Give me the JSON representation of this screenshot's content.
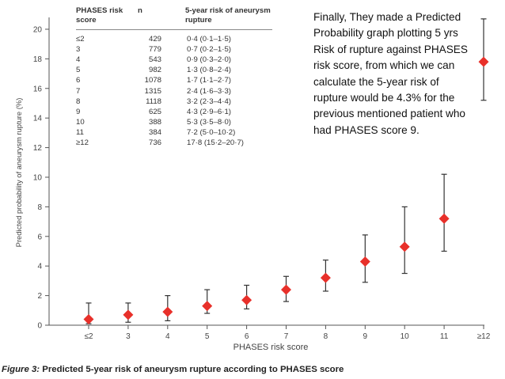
{
  "slide_note": "Finally, They made a Predicted Probability graph plotting 5 yrs Risk of rupture against PHASES risk score, from which we can calculate the 5-year risk of rupture would be 4.3% for the previous mentioned patient who had PHASES score 9.",
  "caption": {
    "figure_label": "Figure 3:",
    "text": "Predicted 5-year risk of aneurysm rupture according to PHASES score"
  },
  "table": {
    "headers": {
      "score": "PHASES risk score",
      "n": "n",
      "risk": "5-year risk of aneurysm rupture"
    },
    "rows": [
      {
        "score": "≤2",
        "n": "429",
        "risk": "0·4 (0·1–1·5)"
      },
      {
        "score": "3",
        "n": "779",
        "risk": "0·7 (0·2–1·5)"
      },
      {
        "score": "4",
        "n": "543",
        "risk": "0·9 (0·3–2·0)"
      },
      {
        "score": "5",
        "n": "982",
        "risk": "1·3 (0·8–2·4)"
      },
      {
        "score": "6",
        "n": "1078",
        "risk": "1·7 (1·1–2·7)"
      },
      {
        "score": "7",
        "n": "1315",
        "risk": "2·4 (1·6–3·3)"
      },
      {
        "score": "8",
        "n": "1118",
        "risk": "3·2 (2·3–4·4)"
      },
      {
        "score": "9",
        "n": "625",
        "risk": "4·3 (2·9–6·1)"
      },
      {
        "score": "10",
        "n": "388",
        "risk": "5·3 (3·5–8·0)"
      },
      {
        "score": "11",
        "n": "384",
        "risk": "7·2 (5·0–10·2)"
      },
      {
        "score": "≥12",
        "n": "736",
        "risk": "17·8 (15·2–20·7)"
      }
    ]
  },
  "chart_data": {
    "type": "scatter",
    "xlabel": "PHASES risk score",
    "ylabel": "Predicted probability of aneurysm rupture (%)",
    "categories": [
      "≤2",
      "3",
      "4",
      "5",
      "6",
      "7",
      "8",
      "9",
      "10",
      "11",
      "≥12"
    ],
    "yticks": [
      0,
      2,
      4,
      6,
      8,
      10,
      12,
      14,
      16,
      18,
      20
    ],
    "ylim": [
      0,
      20.8
    ],
    "series": [
      {
        "values": [
          0.4,
          0.7,
          0.9,
          1.3,
          1.7,
          2.4,
          3.2,
          4.3,
          5.3,
          7.2,
          17.8
        ],
        "lower": [
          0.1,
          0.2,
          0.3,
          0.8,
          1.1,
          1.6,
          2.3,
          2.9,
          3.5,
          5.0,
          15.2
        ],
        "upper": [
          1.5,
          1.5,
          2.0,
          2.4,
          2.7,
          3.3,
          4.4,
          6.1,
          8.0,
          10.2,
          20.7
        ]
      }
    ],
    "grid": false,
    "marker_color": "#e8302a",
    "errorbar_color": "#333333"
  }
}
